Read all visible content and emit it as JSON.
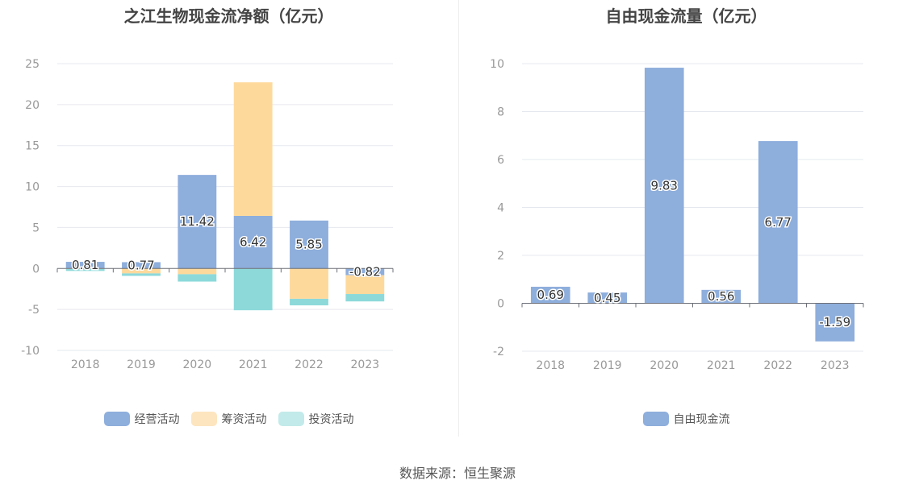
{
  "chart_data": [
    {
      "type": "bar",
      "stacked": true,
      "title": "之江生物现金流净额（亿元）",
      "categories": [
        "2018",
        "2019",
        "2020",
        "2021",
        "2022",
        "2023"
      ],
      "ylim": [
        -10,
        25
      ],
      "yticks": [
        -10,
        -5,
        0,
        5,
        10,
        15,
        20,
        25
      ],
      "grid": true,
      "legend_position": "bottom",
      "series": [
        {
          "name": "经营活动",
          "color": "#8eaedc",
          "values": [
            0.81,
            0.77,
            11.42,
            6.42,
            5.85,
            -0.82
          ],
          "labels": [
            "0.81",
            "0.77",
            "11.42",
            "6.42",
            "5.85",
            "-0.82"
          ]
        },
        {
          "name": "筹资活动",
          "color": "#fed99c",
          "values": [
            -0.05,
            -0.6,
            -0.7,
            16.3,
            -3.7,
            -2.3
          ]
        },
        {
          "name": "投资活动",
          "color": "#8dd9da",
          "values": [
            -0.25,
            -0.3,
            -0.9,
            -5.1,
            -0.8,
            -0.9
          ]
        }
      ]
    },
    {
      "type": "bar",
      "title": "自由现金流量（亿元）",
      "categories": [
        "2018",
        "2019",
        "2020",
        "2021",
        "2022",
        "2023"
      ],
      "ylim": [
        -2,
        10
      ],
      "yticks": [
        -2,
        0,
        2,
        4,
        6,
        8,
        10
      ],
      "grid": true,
      "legend_position": "bottom",
      "series": [
        {
          "name": "自由现金流",
          "color": "#8eaedc",
          "values": [
            0.69,
            0.45,
            9.83,
            0.56,
            6.77,
            -1.59
          ],
          "labels": [
            "0.69",
            "0.45",
            "9.83",
            "0.56",
            "6.77",
            "-1.59"
          ]
        }
      ]
    }
  ],
  "legend_left": [
    {
      "label": "经营活动",
      "color": "#8eaedc"
    },
    {
      "label": "筹资活动",
      "color": "#fde5c0"
    },
    {
      "label": "投资活动",
      "color": "#c2eaea"
    }
  ],
  "legend_right": [
    {
      "label": "自由现金流",
      "color": "#8eaedc"
    }
  ],
  "source": "数据来源：恒生聚源"
}
